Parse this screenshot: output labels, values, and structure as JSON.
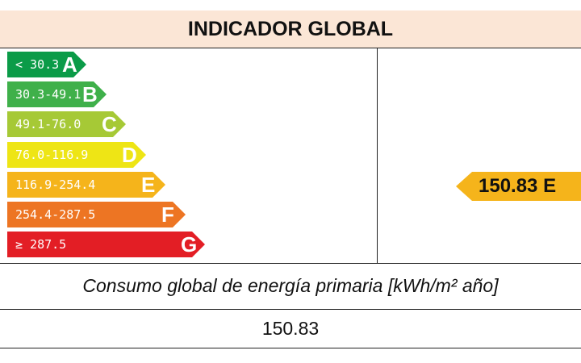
{
  "header": {
    "title": "INDICADOR GLOBAL"
  },
  "scale": {
    "bars": [
      {
        "range": "< 30.3",
        "letter": "A",
        "color": "#0b9b48"
      },
      {
        "range": "30.3-49.1",
        "letter": "B",
        "color": "#3fb04a"
      },
      {
        "range": "49.1-76.0",
        "letter": "C",
        "color": "#a6c936"
      },
      {
        "range": "76.0-116.9",
        "letter": "D",
        "color": "#eee515"
      },
      {
        "range": "116.9-254.4",
        "letter": "E",
        "color": "#f5b41b"
      },
      {
        "range": "254.4-287.5",
        "letter": "F",
        "color": "#ed7523"
      },
      {
        "range": "≥ 287.5",
        "letter": "G",
        "color": "#e31e25"
      }
    ]
  },
  "indicator": {
    "label": "150.83 E",
    "color": "#f5b41b"
  },
  "caption": {
    "text": "Consumo global de energía primaria [kWh/m² año]"
  },
  "result": {
    "value": "150.83"
  }
}
